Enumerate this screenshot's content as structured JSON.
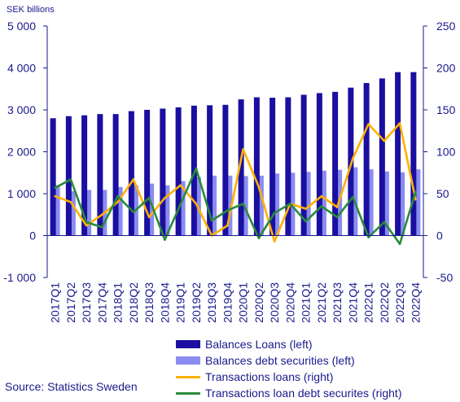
{
  "chart_data": {
    "type": "bar",
    "unit_label": "SEK billions",
    "categories": [
      "2017Q1",
      "2017Q2",
      "2017Q3",
      "2017Q4",
      "2018Q1",
      "2018Q2",
      "2018Q3",
      "2018Q4",
      "2019Q1",
      "2019Q2",
      "2019Q3",
      "2019Q4",
      "2020Q1",
      "2020Q2",
      "2020Q3",
      "2020Q4",
      "2021Q1",
      "2021Q2",
      "2021Q3",
      "2021Q4",
      "2022Q1",
      "2022Q2",
      "2022Q3",
      "2022Q4"
    ],
    "left_axis": {
      "min": -1000,
      "max": 5000,
      "ticks": [
        -1000,
        0,
        1000,
        2000,
        3000,
        4000,
        5000
      ],
      "tick_labels": [
        "-1 000",
        "0",
        "1 000",
        "2 000",
        "3 000",
        "4 000",
        "5 000"
      ]
    },
    "right_axis": {
      "min": -50,
      "max": 250,
      "ticks": [
        -50,
        0,
        50,
        100,
        150,
        200,
        250
      ],
      "tick_labels": [
        "-50",
        "0",
        "50",
        "100",
        "150",
        "200",
        "250"
      ]
    },
    "series": [
      {
        "name": "Balances Loans (left)",
        "kind": "bar",
        "axis": "left",
        "color": "#1a0fa0",
        "values": [
          2800,
          2850,
          2870,
          2900,
          2900,
          2970,
          3000,
          3030,
          3060,
          3100,
          3110,
          3120,
          3250,
          3300,
          3290,
          3300,
          3360,
          3400,
          3430,
          3530,
          3640,
          3750,
          3900,
          3900
        ]
      },
      {
        "name": "Balances debt securities (left)",
        "kind": "bar",
        "axis": "left",
        "color": "#8a8cf0",
        "values": [
          1200,
          1060,
          1090,
          1090,
          1160,
          1200,
          1240,
          1200,
          1300,
          1400,
          1430,
          1430,
          1420,
          1430,
          1480,
          1500,
          1520,
          1550,
          1570,
          1630,
          1580,
          1530,
          1510,
          1580
        ]
      },
      {
        "name": "Transactions loans (right)",
        "kind": "line",
        "axis": "right",
        "color": "#ffb000",
        "values": [
          47,
          40,
          12,
          25,
          40,
          67,
          22,
          45,
          60,
          38,
          0,
          12,
          103,
          58,
          -7,
          38,
          32,
          47,
          34,
          92,
          133,
          113,
          134,
          43
        ]
      },
      {
        "name": "Transactions loan debt securites (right)",
        "kind": "line",
        "axis": "right",
        "color": "#2a8a3a",
        "values": [
          57,
          67,
          16,
          10,
          47,
          28,
          45,
          -5,
          37,
          80,
          18,
          30,
          38,
          -3,
          27,
          38,
          17,
          35,
          22,
          46,
          -2,
          16,
          -10,
          52
        ]
      }
    ],
    "source": "Source: Statistics Sweden",
    "grid": false,
    "legend_position": "bottom"
  }
}
